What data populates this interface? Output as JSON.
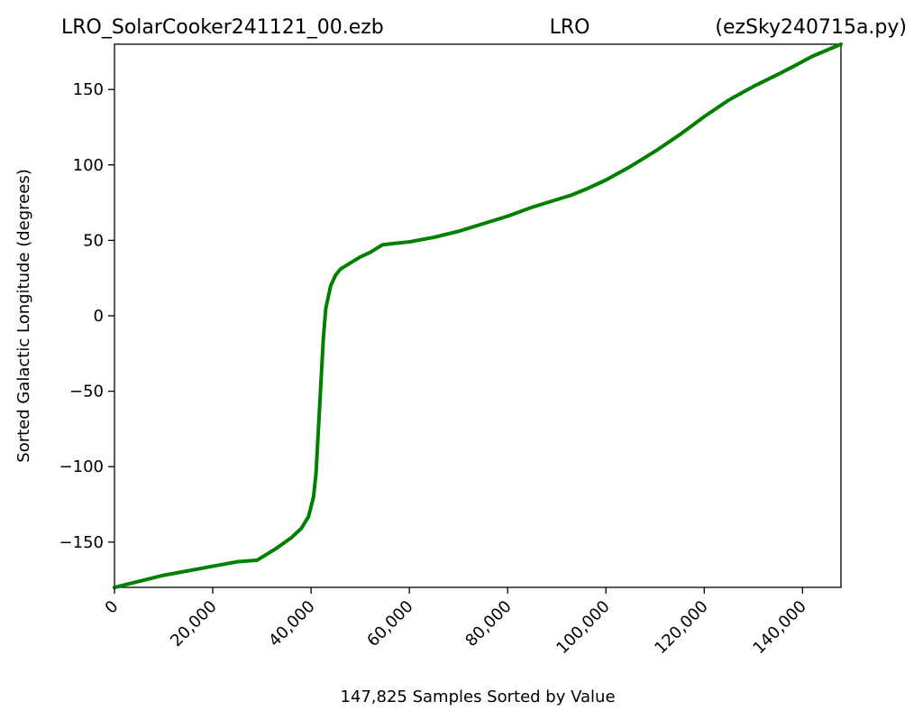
{
  "header": {
    "left": "LRO_SolarCooker241121_00.ezb",
    "center": "LRO",
    "right": "(ezSky240715a.py)"
  },
  "chart_data": {
    "type": "line",
    "xlabel": "147,825 Samples Sorted by Value",
    "ylabel": "Sorted Galactic Longitude (degrees)",
    "xlim": [
      0,
      147825
    ],
    "ylim": [
      -180,
      180
    ],
    "x_ticks": [
      0,
      20000,
      40000,
      60000,
      80000,
      100000,
      120000,
      140000
    ],
    "x_tick_labels": [
      "0",
      "20,000",
      "40,000",
      "60,000",
      "80,000",
      "100,000",
      "120,000",
      "140,000"
    ],
    "y_ticks": [
      -150,
      -100,
      -50,
      0,
      50,
      100,
      150
    ],
    "y_tick_labels": [
      "−150",
      "−100",
      "−50",
      "0",
      "50",
      "100",
      "150"
    ],
    "grid": false,
    "series": [
      {
        "color": "#008000",
        "x": [
          0,
          5000,
          10000,
          15000,
          20000,
          25000,
          29000,
          33000,
          36000,
          38000,
          39500,
          40500,
          41000,
          41500,
          42000,
          42500,
          43000,
          44000,
          45000,
          46000,
          48000,
          50000,
          52000,
          54500,
          57000,
          60000,
          65000,
          70000,
          75000,
          80000,
          85000,
          90000,
          93000,
          96000,
          100000,
          105000,
          110000,
          115000,
          120000,
          125000,
          130000,
          135000,
          138000,
          142000,
          147825
        ],
        "y": [
          -180,
          -176,
          -172,
          -169,
          -166,
          -163,
          -162,
          -154,
          -147,
          -141,
          -133,
          -120,
          -105,
          -75,
          -45,
          -15,
          5,
          20,
          27,
          31,
          35,
          39,
          42,
          47,
          48,
          49,
          52,
          56,
          61,
          66,
          72,
          77,
          80,
          84,
          90,
          99,
          109,
          120,
          132,
          143,
          152,
          160,
          165,
          172,
          180
        ]
      }
    ]
  }
}
